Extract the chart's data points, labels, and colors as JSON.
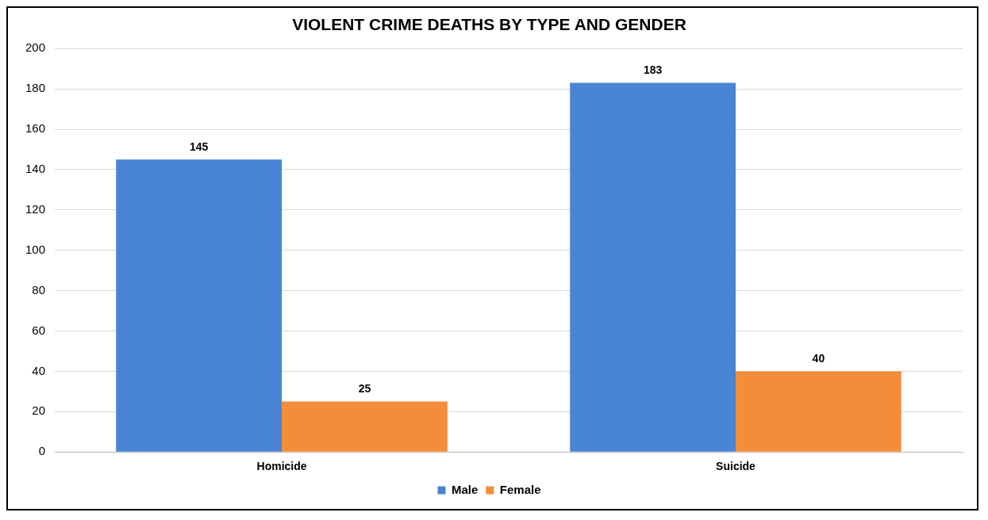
{
  "chart_data": {
    "type": "bar",
    "title": "VIOLENT CRIME DEATHS BY TYPE AND GENDER",
    "categories": [
      "Homicide",
      "Suicide"
    ],
    "series": [
      {
        "name": "Male",
        "color": "#4a84d4",
        "values": [
          145,
          183
        ]
      },
      {
        "name": "Female",
        "color": "#f28e3a",
        "values": [
          25,
          40
        ]
      }
    ],
    "ylim": [
      0,
      200
    ],
    "yticks": [
      0,
      20,
      40,
      60,
      80,
      100,
      120,
      140,
      160,
      180,
      200
    ],
    "grid": "y",
    "legend": "bottom",
    "data_labels": true
  }
}
